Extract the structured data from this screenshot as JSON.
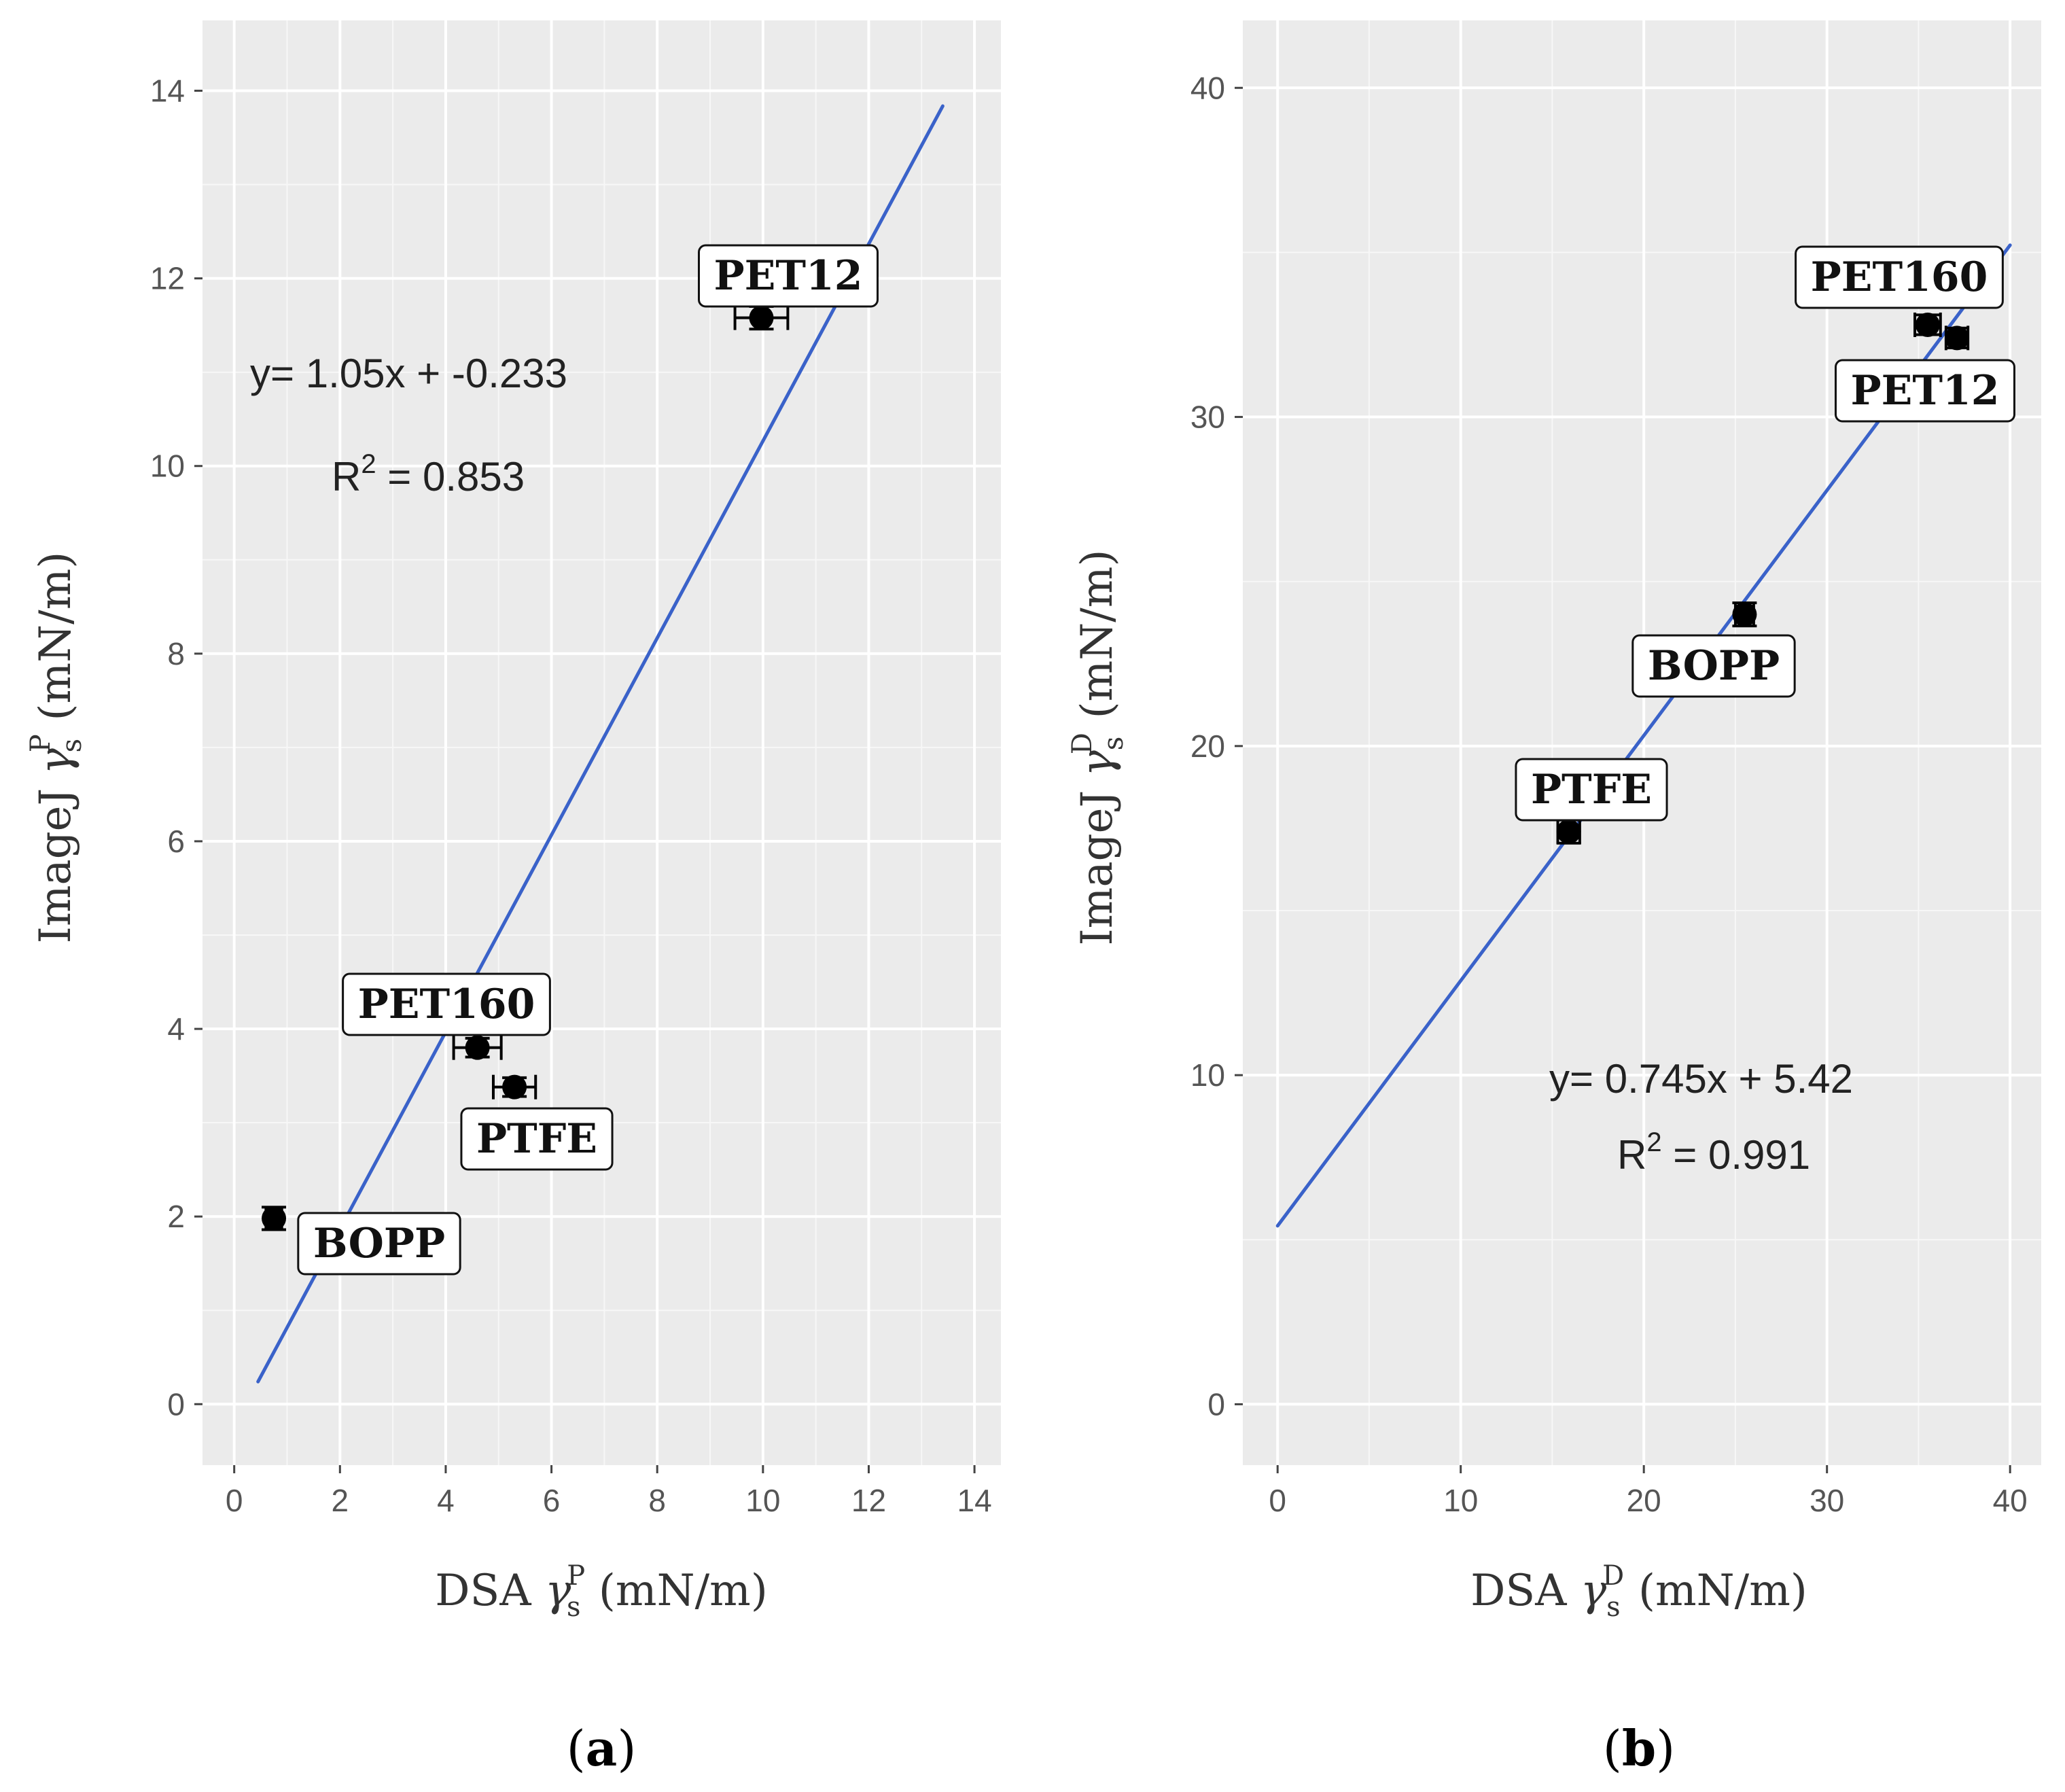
{
  "chart_data": [
    {
      "type": "scatter",
      "panel": "a",
      "caption": {
        "open": "(",
        "letter": "a",
        "close": ")"
      },
      "xlabel": {
        "prefix": "DSA ",
        "symbol": "γ",
        "sub": "s",
        "sup": "P",
        "suffix": " (mN/m)"
      },
      "ylabel": {
        "prefix": "ImageJ ",
        "symbol": "γ",
        "sub": "s",
        "sup": "P",
        "suffix": " (mN/m)"
      },
      "xlim": [
        -0.6,
        14.5
      ],
      "ylim": [
        -0.65,
        14.75
      ],
      "xticks": [
        0,
        2,
        4,
        6,
        8,
        10,
        12,
        14
      ],
      "yticks": [
        0,
        2,
        4,
        6,
        8,
        10,
        12,
        14
      ],
      "x_tick_labels": [
        "0",
        "2",
        "4",
        "6",
        "8",
        "10",
        "12",
        "14"
      ],
      "y_tick_labels": [
        "0",
        "2",
        "4",
        "6",
        "8",
        "10",
        "12",
        "14"
      ],
      "grid": true,
      "points": [
        {
          "name": "BOPP",
          "x": 0.75,
          "y": 1.98,
          "xerr": 0.15,
          "yerr": 0.12
        },
        {
          "name": "PET160",
          "x": 4.6,
          "y": 3.8,
          "xerr": 0.45,
          "yerr": 0.1
        },
        {
          "name": "PTFE",
          "x": 5.3,
          "y": 3.38,
          "xerr": 0.4,
          "yerr": 0.1
        },
        {
          "name": "PET12",
          "x": 9.97,
          "y": 11.58,
          "xerr": 0.5,
          "yerr": 0.12
        }
      ],
      "fit": {
        "slope": 1.05,
        "intercept": -0.233,
        "x_range": [
          0.45,
          13.4
        ]
      },
      "equation_text": "y= 1.05x + -0.233",
      "r2": {
        "prefix": "R",
        "sup": "2",
        "value": " = 0.853"
      }
    },
    {
      "type": "scatter",
      "panel": "b",
      "caption": {
        "open": "(",
        "letter": "b",
        "close": ")"
      },
      "xlabel": {
        "prefix": "DSA ",
        "symbol": "γ",
        "sub": "s",
        "sup": "D",
        "suffix": " (mN/m)"
      },
      "ylabel": {
        "prefix": "ImageJ ",
        "symbol": "γ",
        "sub": "s",
        "sup": "D",
        "suffix": " (mN/m)"
      },
      "xlim": [
        -1.9,
        41.7
      ],
      "ylim": [
        -1.85,
        42.05
      ],
      "xticks": [
        0,
        10,
        20,
        30,
        40
      ],
      "yticks": [
        0,
        10,
        20,
        30,
        40
      ],
      "x_tick_labels": [
        "0",
        "10",
        "20",
        "30",
        "40"
      ],
      "y_tick_labels": [
        "0",
        "10",
        "20",
        "30",
        "40"
      ],
      "grid": true,
      "points": [
        {
          "name": "PTFE",
          "x": 15.9,
          "y": 17.4,
          "xerr": 0.6,
          "yerr": 0.35
        },
        {
          "name": "BOPP",
          "x": 25.5,
          "y": 24.0,
          "xerr": 0.5,
          "yerr": 0.35
        },
        {
          "name": "PET160",
          "x": 35.5,
          "y": 32.8,
          "xerr": 0.7,
          "yerr": 0.3
        },
        {
          "name": "PET12",
          "x": 37.1,
          "y": 32.4,
          "xerr": 0.6,
          "yerr": 0.3
        }
      ],
      "fit": {
        "slope": 0.745,
        "intercept": 5.42,
        "x_range": [
          0.0,
          40.0
        ]
      },
      "equation_text": "y= 0.745x + 5.42",
      "r2": {
        "prefix": "R",
        "sup": "2",
        "value": " = 0.991"
      }
    }
  ]
}
